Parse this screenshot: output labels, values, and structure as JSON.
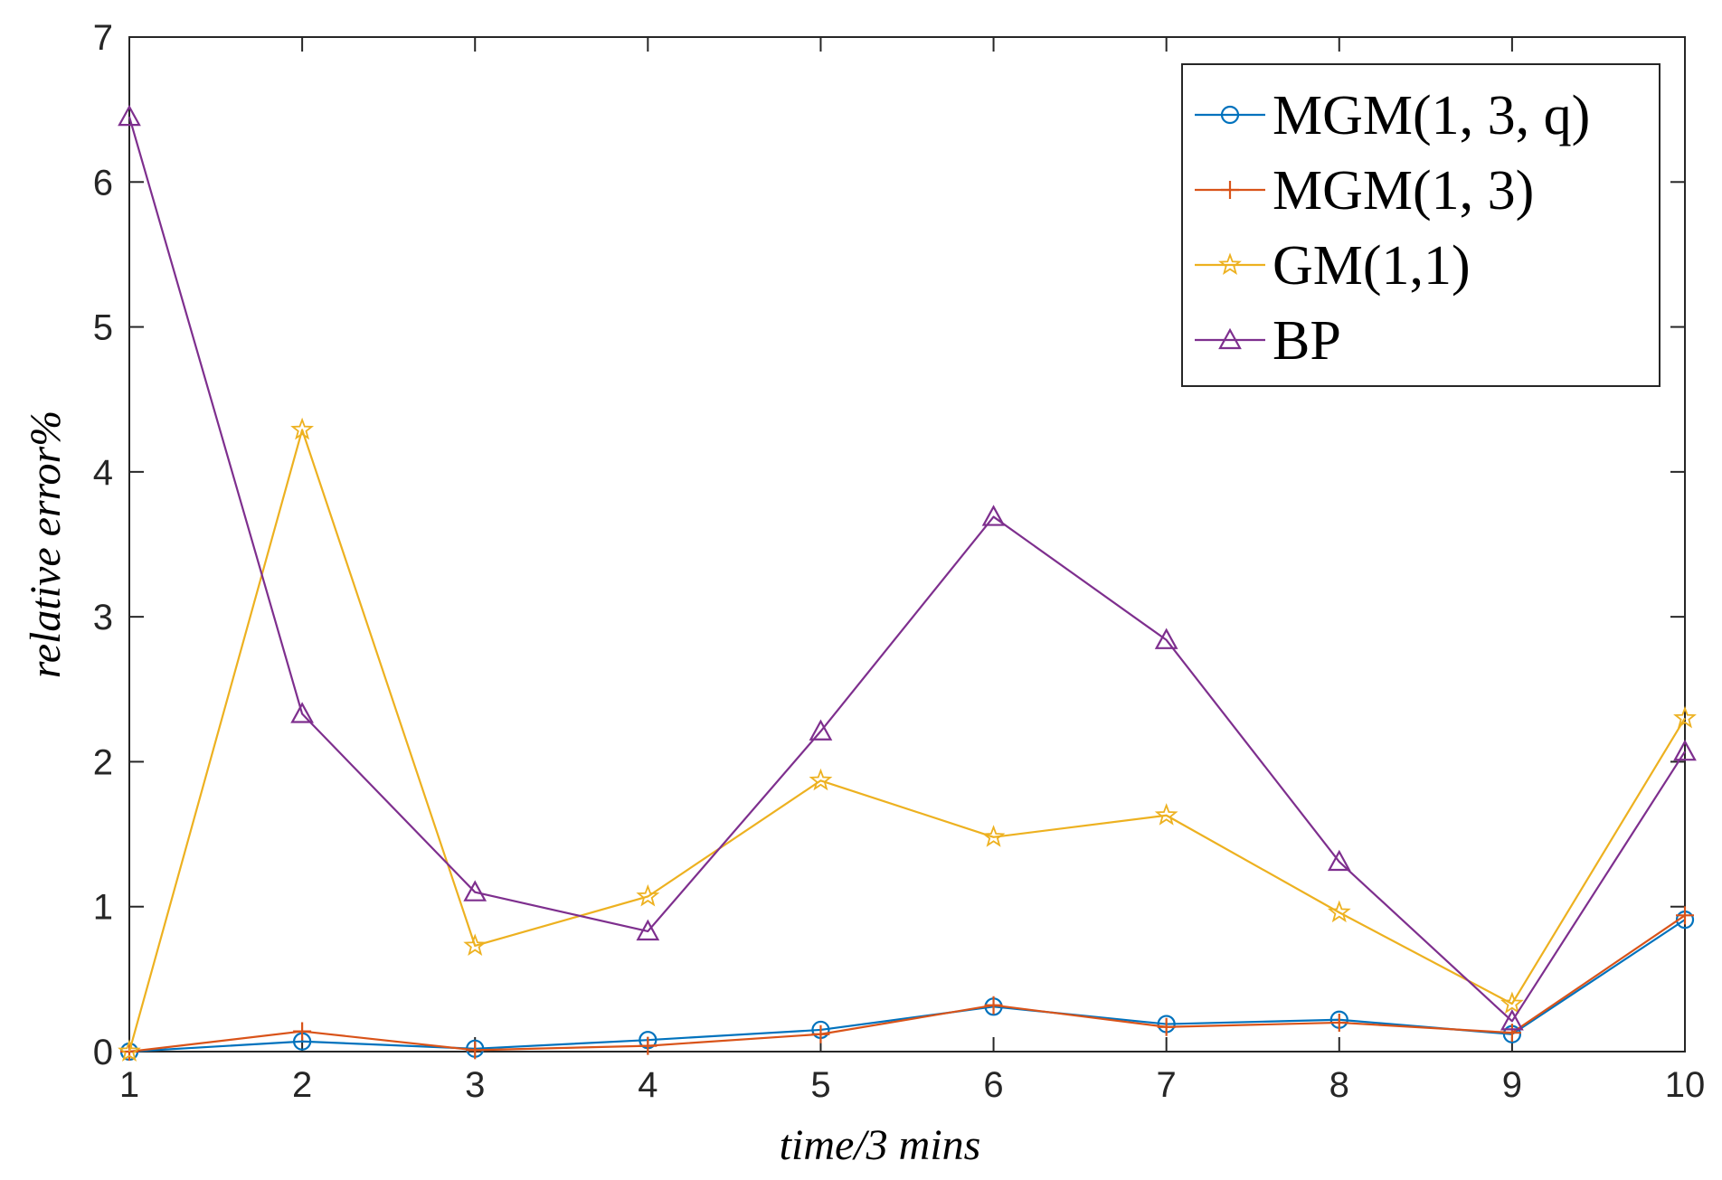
{
  "chart_data": {
    "type": "line",
    "title": "",
    "xlabel": "time/3 mins",
    "ylabel": "relative error%",
    "x": [
      1,
      2,
      3,
      4,
      5,
      6,
      7,
      8,
      9,
      10
    ],
    "xlim": [
      1,
      10
    ],
    "ylim": [
      0,
      7
    ],
    "xticks": [
      "1",
      "2",
      "3",
      "4",
      "5",
      "6",
      "7",
      "8",
      "9",
      "10"
    ],
    "yticks": [
      "0",
      "1",
      "2",
      "3",
      "4",
      "5",
      "6",
      "7"
    ],
    "grid": false,
    "legend_position": "top-right",
    "series": [
      {
        "name": "MGM(1, 3, q)",
        "marker": "circle",
        "color": "#0072BD",
        "values": [
          0.0,
          0.07,
          0.02,
          0.08,
          0.15,
          0.31,
          0.19,
          0.22,
          0.12,
          0.91
        ]
      },
      {
        "name": "MGM(1, 3)",
        "marker": "plus",
        "color": "#D95319",
        "values": [
          0.0,
          0.14,
          0.01,
          0.04,
          0.12,
          0.32,
          0.17,
          0.2,
          0.13,
          0.94
        ]
      },
      {
        "name": "GM(1,1)",
        "marker": "star",
        "color": "#EDB120",
        "values": [
          0.0,
          4.29,
          0.73,
          1.07,
          1.87,
          1.48,
          1.63,
          0.96,
          0.33,
          2.3
        ]
      },
      {
        "name": "BP",
        "marker": "triangle",
        "color": "#7E2F8E",
        "values": [
          6.45,
          2.33,
          1.1,
          0.83,
          2.21,
          3.69,
          2.84,
          1.31,
          0.21,
          2.07
        ]
      }
    ]
  }
}
